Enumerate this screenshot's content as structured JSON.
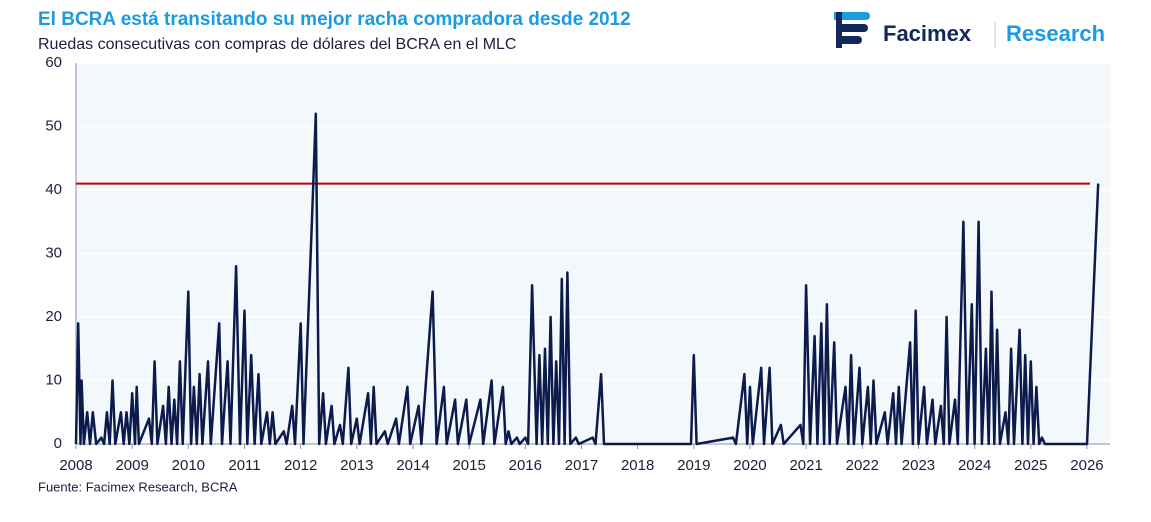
{
  "header": {
    "brand": "Facimex",
    "section": "Research"
  },
  "chart_data": {
    "type": "line",
    "title": "El BCRA está transitando su mejor racha compradora desde 2012",
    "subtitle": "Ruedas consecutivas con compras de dólares del BCRA en el MLC",
    "source": "Fuente: Facimex Research, BCRA",
    "xlim": [
      2008,
      2026.41
    ],
    "xticks": [
      2008,
      2009,
      2010,
      2011,
      2012,
      2013,
      2014,
      2015,
      2016,
      2017,
      2018,
      2019,
      2020,
      2021,
      2022,
      2023,
      2024,
      2025,
      2026
    ],
    "ylim": [
      0,
      60
    ],
    "yticks": [
      0,
      10,
      20,
      30,
      40,
      50,
      60
    ],
    "grid": true,
    "reference_line": {
      "value": 41,
      "color": "#c00000"
    },
    "series": [
      {
        "color": "#0d1b4c",
        "x": [
          2008.0,
          2008.04,
          2008.08,
          2008.1,
          2008.14,
          2008.2,
          2008.25,
          2008.3,
          2008.36,
          2008.45,
          2008.5,
          2008.55,
          2008.6,
          2008.65,
          2008.7,
          2008.8,
          2008.85,
          2008.9,
          2008.95,
          2009.0,
          2009.05,
          2009.08,
          2009.12,
          2009.3,
          2009.35,
          2009.4,
          2009.45,
          2009.55,
          2009.6,
          2009.65,
          2009.7,
          2009.75,
          2009.8,
          2009.85,
          2009.9,
          2010.0,
          2010.05,
          2010.1,
          2010.15,
          2010.2,
          2010.25,
          2010.35,
          2010.4,
          2010.55,
          2010.6,
          2010.7,
          2010.75,
          2010.85,
          2010.92,
          2011.0,
          2011.05,
          2011.12,
          2011.18,
          2011.25,
          2011.3,
          2011.4,
          2011.45,
          2011.5,
          2011.55,
          2011.7,
          2011.75,
          2011.85,
          2011.9,
          2012.0,
          2012.05,
          2012.2,
          2012.27,
          2012.33,
          2012.4,
          2012.45,
          2012.55,
          2012.6,
          2012.7,
          2012.75,
          2012.85,
          2012.9,
          2013.0,
          2013.05,
          2013.2,
          2013.25,
          2013.3,
          2013.35,
          2013.5,
          2013.55,
          2013.7,
          2013.75,
          2013.9,
          2013.95,
          2014.1,
          2014.15,
          2014.35,
          2014.42,
          2014.55,
          2014.6,
          2014.75,
          2014.8,
          2014.95,
          2015.0,
          2015.2,
          2015.25,
          2015.4,
          2015.45,
          2015.6,
          2015.65,
          2015.7,
          2015.75,
          2015.85,
          2015.9,
          2016.0,
          2016.05,
          2016.12,
          2016.2,
          2016.25,
          2016.3,
          2016.35,
          2016.4,
          2016.45,
          2016.5,
          2016.55,
          2016.6,
          2016.65,
          2016.7,
          2016.75,
          2016.8,
          2016.9,
          2016.95,
          2017.2,
          2017.25,
          2017.35,
          2017.4,
          2018.95,
          2019.0,
          2019.05,
          2019.7,
          2019.75,
          2019.9,
          2019.95,
          2020.0,
          2020.05,
          2020.2,
          2020.25,
          2020.35,
          2020.4,
          2020.55,
          2020.6,
          2020.9,
          2020.95,
          2021.0,
          2021.07,
          2021.15,
          2021.2,
          2021.27,
          2021.32,
          2021.37,
          2021.42,
          2021.5,
          2021.55,
          2021.7,
          2021.75,
          2021.8,
          2021.85,
          2021.95,
          2022.0,
          2022.1,
          2022.15,
          2022.2,
          2022.25,
          2022.4,
          2022.45,
          2022.55,
          2022.6,
          2022.65,
          2022.7,
          2022.85,
          2022.9,
          2022.95,
          2023.0,
          2023.1,
          2023.15,
          2023.25,
          2023.3,
          2023.4,
          2023.45,
          2023.5,
          2023.55,
          2023.65,
          2023.7,
          2023.8,
          2023.87,
          2023.95,
          2024.0,
          2024.07,
          2024.13,
          2024.2,
          2024.25,
          2024.3,
          2024.35,
          2024.4,
          2024.45,
          2024.55,
          2024.6,
          2024.65,
          2024.7,
          2024.8,
          2024.85,
          2024.9,
          2024.95,
          2025.0,
          2025.05,
          2025.1,
          2025.15,
          2025.2,
          2025.25,
          2026.0,
          2026.2
        ],
        "values": [
          0,
          19,
          0,
          10,
          0,
          5,
          0,
          5,
          0,
          1,
          0,
          5,
          0,
          10,
          0,
          5,
          0,
          5,
          0,
          8,
          0,
          9,
          0,
          4,
          0,
          13,
          0,
          6,
          0,
          9,
          0,
          7,
          0,
          13,
          0,
          24,
          0,
          9,
          0,
          11,
          0,
          13,
          0,
          19,
          0,
          13,
          0,
          28,
          0,
          21,
          0,
          14,
          0,
          11,
          0,
          5,
          0,
          5,
          0,
          2,
          0,
          6,
          0,
          19,
          0,
          35,
          52,
          0,
          8,
          0,
          6,
          0,
          3,
          0,
          12,
          0,
          4,
          0,
          8,
          0,
          9,
          0,
          2,
          0,
          4,
          0,
          9,
          0,
          6,
          0,
          24,
          0,
          9,
          0,
          7,
          0,
          7,
          0,
          7,
          0,
          10,
          0,
          9,
          0,
          2,
          0,
          1,
          0,
          1,
          0,
          25,
          0,
          14,
          0,
          15,
          0,
          20,
          0,
          13,
          0,
          26,
          0,
          27,
          0,
          1,
          0,
          1,
          0,
          11,
          0,
          0,
          14,
          0,
          1,
          0,
          11,
          0,
          9,
          0,
          12,
          0,
          12,
          0,
          3,
          0,
          3,
          0,
          25,
          0,
          17,
          0,
          19,
          0,
          22,
          0,
          16,
          0,
          9,
          0,
          14,
          0,
          12,
          0,
          9,
          0,
          10,
          0,
          5,
          0,
          8,
          0,
          9,
          0,
          16,
          0,
          21,
          0,
          9,
          0,
          7,
          0,
          6,
          0,
          20,
          0,
          7,
          0,
          35,
          0,
          22,
          0,
          35,
          0,
          15,
          0,
          24,
          0,
          18,
          0,
          5,
          0,
          15,
          0,
          18,
          0,
          14,
          0,
          13,
          0,
          9,
          0,
          1,
          0,
          0,
          41
        ]
      }
    ]
  }
}
